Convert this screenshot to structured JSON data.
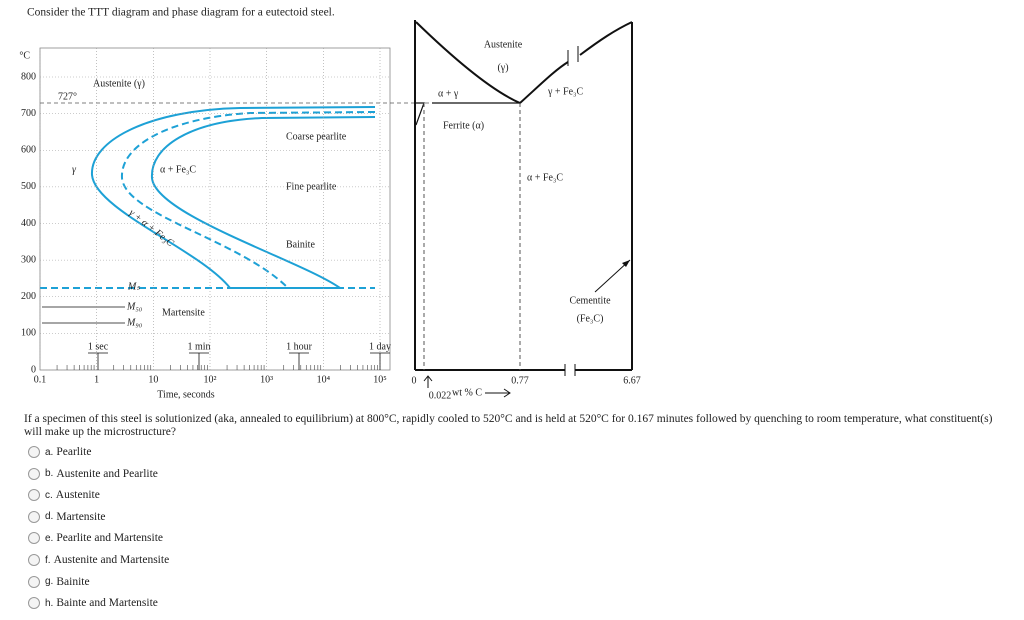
{
  "header": {
    "prompt": "Consider the TTT diagram and phase diagram for a eutectoid steel."
  },
  "ttt_diagram": {
    "y_unit": "°C",
    "y_ticks": [
      "800",
      "700",
      "600",
      "500",
      "400",
      "300",
      "200",
      "100",
      "0"
    ],
    "x_ticks": [
      "0.1",
      "1",
      "10",
      "10²",
      "10³",
      "10⁴",
      "10⁵"
    ],
    "x_label": "Time, seconds",
    "time_marks": [
      "1 sec",
      "1 min",
      "1 hour",
      "1 day"
    ],
    "eutectoid_temp": "727°",
    "austenite": "Austenite (γ)",
    "coarse_pearlite": "Coarse pearlite",
    "gamma": "γ",
    "alpha_fe3c": "α + Fe₃C",
    "fine_pearlite": "Fine pearlite",
    "mixed": "γ + α + Fe₃C",
    "bainite": "Bainite",
    "ms": "Mₛ",
    "m50": "M₅₀",
    "m90": "M₉₀",
    "martensite": "Martensite"
  },
  "phase_diagram": {
    "austenite": "Austenite",
    "gamma": "(γ)",
    "alpha_gamma": "α + γ",
    "gamma_fe3c": "γ + Fe₃C",
    "ferrite": "Ferrite (α)",
    "alpha_fe3c": "α + Fe₃C",
    "cementite": "Cementite",
    "fe3c": "(Fe₃C)",
    "zero": "0",
    "c_ferrite": "0.022",
    "c_eutectoid": "0.77",
    "c_cementite": "6.67",
    "x_label": "wt % C"
  },
  "question": {
    "text": "If a specimen of this steel is solutionized (aka, annealed to equilibrium) at 800°C, rapidly cooled to 520°C and is held at 520°C for 0.167 minutes followed by quenching to room temperature, what constituent(s) will make up the microstructure?",
    "options": [
      {
        "letter": "a.",
        "text": "Pearlite"
      },
      {
        "letter": "b.",
        "text": "Austenite and Pearlite"
      },
      {
        "letter": "c.",
        "text": "Austenite"
      },
      {
        "letter": "d.",
        "text": "Martensite"
      },
      {
        "letter": "e.",
        "text": "Pearlite and Martensite"
      },
      {
        "letter": "f.",
        "text": "Austenite and Martensite"
      },
      {
        "letter": "g.",
        "text": "Bainite"
      },
      {
        "letter": "h.",
        "text": "Bainte and Martensite"
      }
    ]
  }
}
